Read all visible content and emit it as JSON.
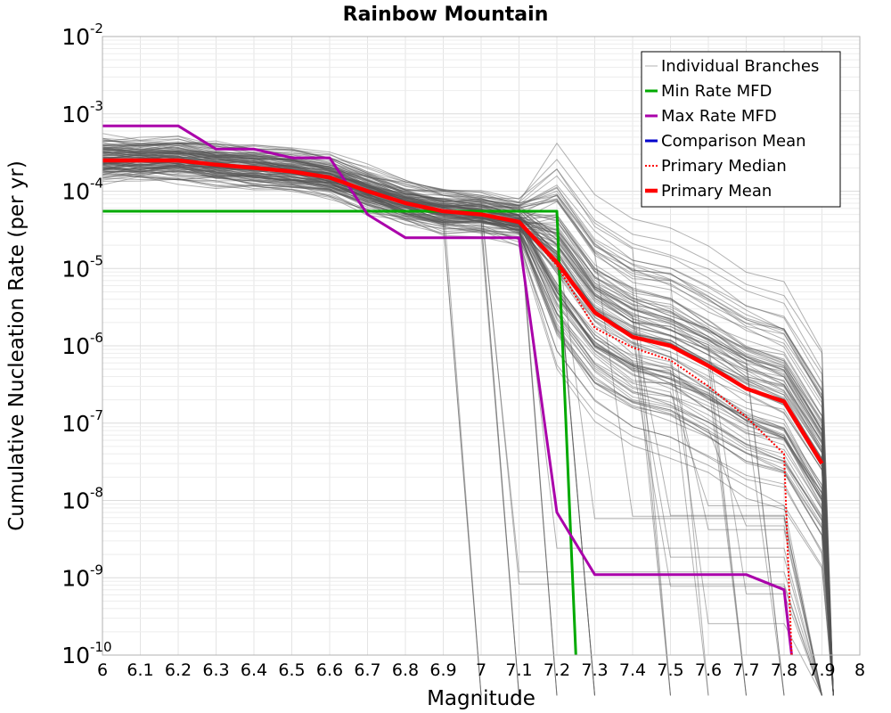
{
  "chart_data": {
    "type": "line",
    "title": "Rainbow Mountain",
    "xlabel": "Magnitude",
    "ylabel": "Cumulative Nucleation Rate (per yr)",
    "xlim": [
      6,
      8
    ],
    "ylim": [
      1e-10,
      0.01
    ],
    "yscale": "log",
    "grid": true,
    "legend_position": "top-right",
    "x_ticks": [
      "6",
      "6.1",
      "6.2",
      "6.3",
      "6.4",
      "6.5",
      "6.6",
      "6.7",
      "6.8",
      "6.9",
      "7",
      "7.1",
      "7.2",
      "7.3",
      "7.4",
      "7.5",
      "7.6",
      "7.7",
      "7.8",
      "7.9",
      "8"
    ],
    "y_ticks": [
      {
        "base": "10",
        "exp": "-10",
        "value": 1e-10
      },
      {
        "base": "10",
        "exp": "-9",
        "value": 1e-09
      },
      {
        "base": "10",
        "exp": "-8",
        "value": 1e-08
      },
      {
        "base": "10",
        "exp": "-7",
        "value": 1e-07
      },
      {
        "base": "10",
        "exp": "-6",
        "value": 1e-06
      },
      {
        "base": "10",
        "exp": "-5",
        "value": 1e-05
      },
      {
        "base": "10",
        "exp": "-4",
        "value": 0.0001
      },
      {
        "base": "10",
        "exp": "-3",
        "value": 0.001
      },
      {
        "base": "10",
        "exp": "-2",
        "value": 0.01
      }
    ],
    "series": [
      {
        "name": "Individual Branches",
        "color": "#555555",
        "style": "thin",
        "x": [
          6.0,
          6.1,
          6.2,
          6.3,
          6.4,
          6.5,
          6.6,
          6.7,
          6.8,
          6.9,
          7.0,
          7.1,
          7.2,
          7.3,
          7.4,
          7.5,
          7.6,
          7.7,
          7.8,
          7.9
        ],
        "y": [
          0.00025,
          0.00025,
          0.00025,
          0.00022,
          0.0002,
          0.00018,
          0.00015,
          0.0001,
          7e-05,
          5.5e-05,
          5e-05,
          4e-05,
          1.2e-05,
          2.7e-06,
          1.3e-06,
          1e-06,
          5.5e-07,
          2.8e-07,
          1.9e-07,
          3e-08
        ]
      },
      {
        "name": "Min Rate MFD",
        "color": "#00aa00",
        "x": [
          6.0,
          6.1,
          6.2,
          6.3,
          6.4,
          6.5,
          6.6,
          6.7,
          6.8,
          6.9,
          7.0,
          7.1,
          7.2,
          7.25
        ],
        "y": [
          5.5e-05,
          5.5e-05,
          5.5e-05,
          5.5e-05,
          5.5e-05,
          5.5e-05,
          5.5e-05,
          5.5e-05,
          5.5e-05,
          5.5e-05,
          5.5e-05,
          5.5e-05,
          5.5e-05,
          1e-10
        ]
      },
      {
        "name": "Max Rate MFD",
        "color": "#aa00aa",
        "x": [
          6.0,
          6.1,
          6.2,
          6.3,
          6.4,
          6.5,
          6.6,
          6.7,
          6.8,
          6.9,
          7.0,
          7.1,
          7.2,
          7.3,
          7.4,
          7.5,
          7.6,
          7.7,
          7.8,
          7.82
        ],
        "y": [
          0.0007,
          0.0007,
          0.0007,
          0.00035,
          0.00035,
          0.00027,
          0.00027,
          5e-05,
          2.5e-05,
          2.5e-05,
          2.5e-05,
          2.5e-05,
          7e-09,
          1.1e-09,
          1.1e-09,
          1.1e-09,
          1.1e-09,
          1.1e-09,
          7e-10,
          1e-10
        ]
      },
      {
        "name": "Comparison Mean",
        "color": "#0000cc",
        "x": [],
        "y": []
      },
      {
        "name": "Primary Median",
        "color": "#ff0000",
        "style": "dotted",
        "x": [
          6.0,
          6.1,
          6.2,
          6.3,
          6.4,
          6.5,
          6.6,
          6.7,
          6.8,
          6.9,
          7.0,
          7.1,
          7.2,
          7.3,
          7.4,
          7.5,
          7.6,
          7.7,
          7.8,
          7.82
        ],
        "y": [
          0.00025,
          0.00025,
          0.00025,
          0.00022,
          0.0002,
          0.00018,
          0.00015,
          0.0001,
          7e-05,
          5.5e-05,
          5e-05,
          4e-05,
          1.1e-05,
          1.7e-06,
          9.5e-07,
          6.5e-07,
          3e-07,
          1.2e-07,
          4e-08,
          1e-10
        ]
      },
      {
        "name": "Primary Mean",
        "color": "#ff0000",
        "style": "thick",
        "x": [
          6.0,
          6.1,
          6.2,
          6.3,
          6.4,
          6.5,
          6.6,
          6.7,
          6.8,
          6.9,
          7.0,
          7.1,
          7.2,
          7.3,
          7.4,
          7.5,
          7.6,
          7.7,
          7.8,
          7.9
        ],
        "y": [
          0.00025,
          0.00025,
          0.00025,
          0.00022,
          0.0002,
          0.00018,
          0.00015,
          0.0001,
          7e-05,
          5.5e-05,
          5e-05,
          4e-05,
          1.2e-05,
          2.7e-06,
          1.3e-06,
          1e-06,
          5.5e-07,
          2.8e-07,
          1.9e-07,
          3e-08
        ]
      }
    ]
  }
}
